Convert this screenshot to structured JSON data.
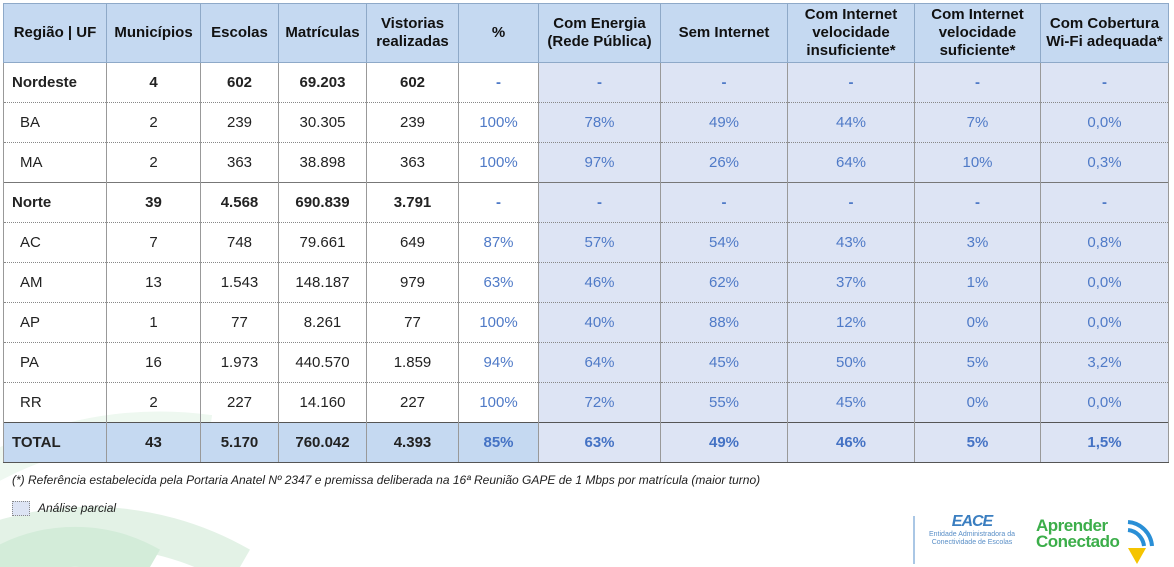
{
  "table": {
    "header": [
      "Região | UF",
      "Municípios",
      "Escolas",
      "Matrículas",
      "Vistorias realizadas",
      "%",
      "Com Energia (Rede Pública)",
      "Sem Internet",
      "Com Internet velocidade insuficiente*",
      "Com Internet velocidade suficiente*",
      "Com Cobertura Wi-Fi adequada*"
    ],
    "groups": [
      {
        "region": [
          "Nordeste",
          "4",
          "602",
          "69.203",
          "602",
          "-",
          "-",
          "-",
          "-",
          "-",
          "-"
        ],
        "states": [
          [
            "BA",
            "2",
            "239",
            "30.305",
            "239",
            "100%",
            "78%",
            "49%",
            "44%",
            "7%",
            "0,0%"
          ],
          [
            "MA",
            "2",
            "363",
            "38.898",
            "363",
            "100%",
            "97%",
            "26%",
            "64%",
            "10%",
            "0,3%"
          ]
        ]
      },
      {
        "region": [
          "Norte",
          "39",
          "4.568",
          "690.839",
          "3.791",
          "-",
          "-",
          "-",
          "-",
          "-",
          "-"
        ],
        "states": [
          [
            "AC",
            "7",
            "748",
            "79.661",
            "649",
            "87%",
            "57%",
            "54%",
            "43%",
            "3%",
            "0,8%"
          ],
          [
            "AM",
            "13",
            "1.543",
            "148.187",
            "979",
            "63%",
            "46%",
            "62%",
            "37%",
            "1%",
            "0,0%"
          ],
          [
            "AP",
            "1",
            "77",
            "8.261",
            "77",
            "100%",
            "40%",
            "88%",
            "12%",
            "0%",
            "0,0%"
          ],
          [
            "PA",
            "16",
            "1.973",
            "440.570",
            "1.859",
            "94%",
            "64%",
            "45%",
            "50%",
            "5%",
            "3,2%"
          ],
          [
            "RR",
            "2",
            "227",
            "14.160",
            "227",
            "100%",
            "72%",
            "55%",
            "45%",
            "0%",
            "0,0%"
          ]
        ]
      }
    ],
    "total": [
      "TOTAL",
      "43",
      "5.170",
      "760.042",
      "4.393",
      "85%",
      "63%",
      "49%",
      "46%",
      "5%",
      "1,5%"
    ]
  },
  "footnote": "(*) Referência estabelecida pela Portaria Anatel Nº 2347 e premissa deliberada na 16ª Reunião GAPE de 1 Mbps por matrícula (maior turno)",
  "legend": "Análise parcial",
  "logos": {
    "eace": "EACE",
    "eace_sub": "Entidade Administradora da Conectividade de Escolas",
    "aprender_1": "Aprender",
    "aprender_2": "Conectado"
  }
}
